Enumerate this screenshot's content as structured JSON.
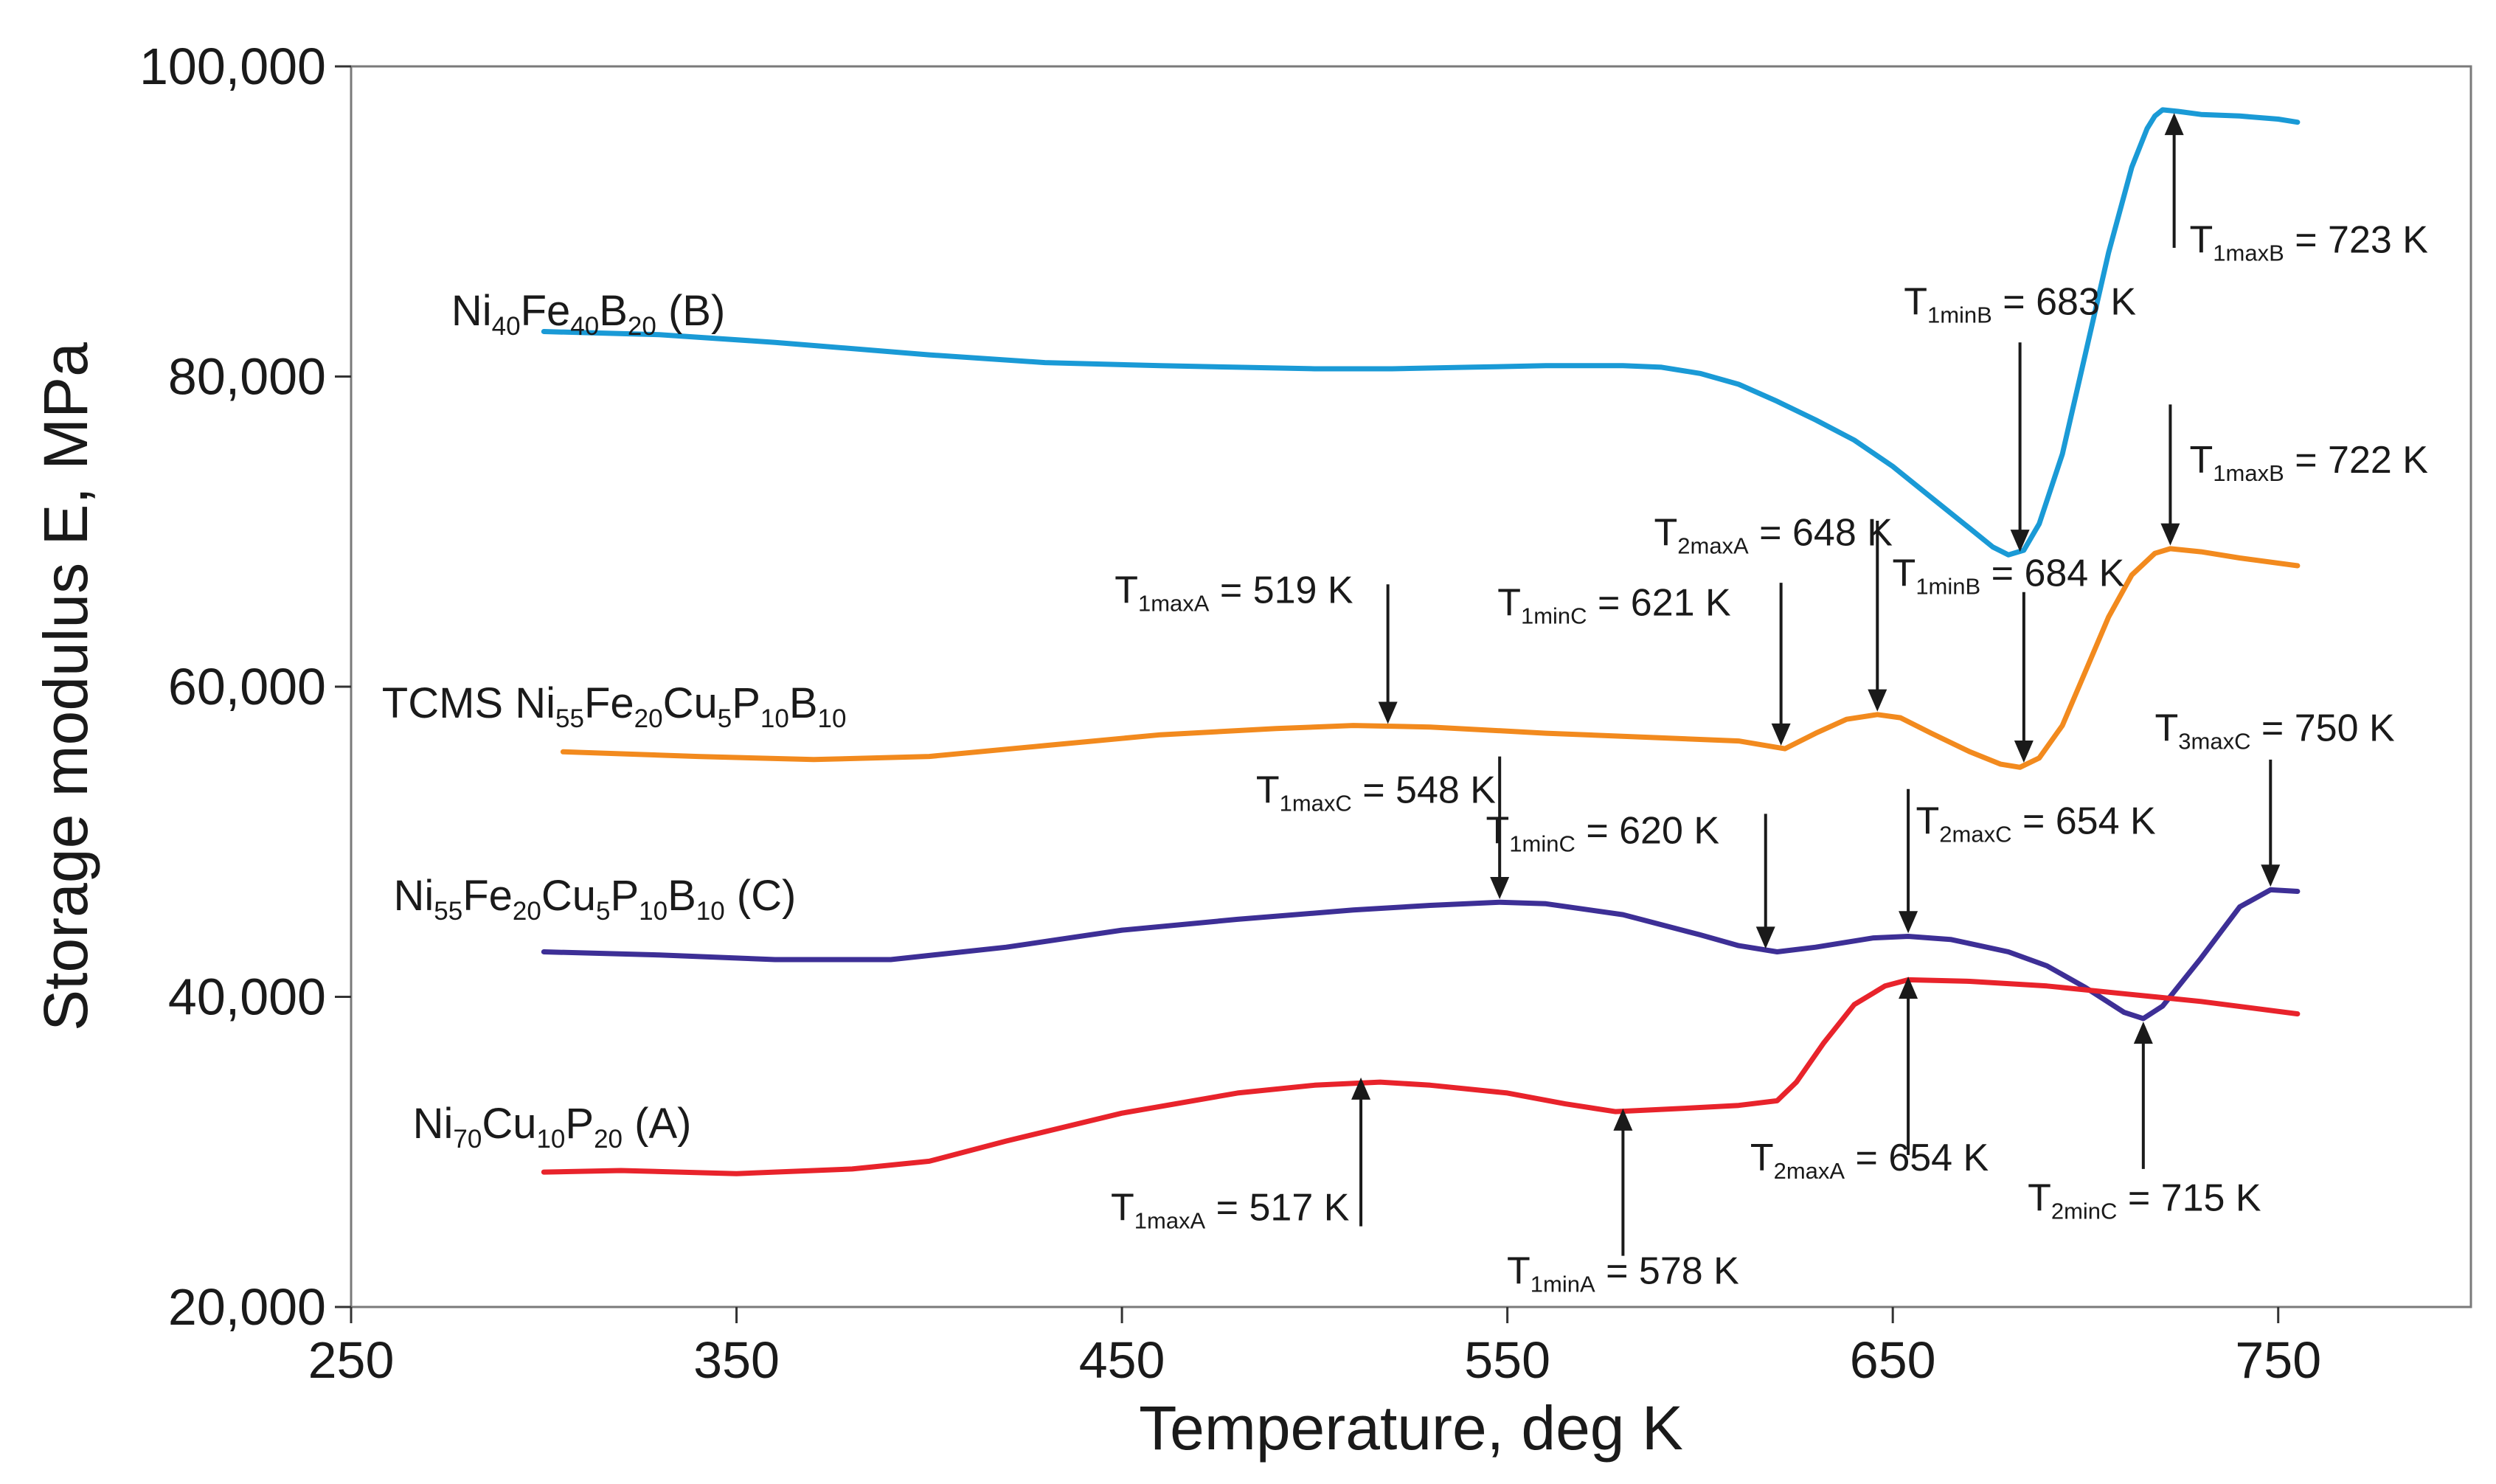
{
  "chart_data": {
    "type": "line",
    "title": "",
    "xlabel": "Temperature, deg K",
    "ylabel": "Storage modulus E, MPa",
    "xlim": [
      250,
      800
    ],
    "ylim": [
      20000,
      100000
    ],
    "x_ticks": [
      250,
      350,
      450,
      550,
      650,
      750
    ],
    "x_tick_labels": [
      "250",
      "350",
      "450",
      "550",
      "650",
      "750"
    ],
    "y_ticks": [
      20000,
      40000,
      60000,
      80000,
      100000
    ],
    "y_tick_labels": [
      "20,000",
      "40,000",
      "60,000",
      "80,000",
      "100,000"
    ],
    "grid": false,
    "series": [
      {
        "name": "Ni40Fe40B20 (B)",
        "label": [
          [
            "Ni",
            "n"
          ],
          [
            "40",
            "s"
          ],
          [
            "Fe",
            "n"
          ],
          [
            "40",
            "s"
          ],
          [
            "B",
            "n"
          ],
          [
            "20",
            "s"
          ],
          [
            " (B)",
            "n"
          ]
        ],
        "color": "#1a9ad6",
        "x": [
          300,
          330,
          360,
          400,
          430,
          460,
          480,
          500,
          520,
          540,
          560,
          580,
          590,
          600,
          610,
          620,
          630,
          640,
          650,
          660,
          670,
          676,
          680,
          684,
          688,
          694,
          700,
          706,
          712,
          716,
          718,
          720,
          724,
          730,
          740,
          750,
          755
        ],
        "y": [
          82900,
          82700,
          82200,
          81400,
          80900,
          80700,
          80600,
          80500,
          80500,
          80600,
          80700,
          80700,
          80600,
          80200,
          79500,
          78400,
          77200,
          75900,
          74200,
          72200,
          70200,
          69000,
          68500,
          68800,
          70500,
          75000,
          81500,
          88000,
          93500,
          96000,
          96800,
          97200,
          97100,
          96900,
          96800,
          96600,
          96400
        ]
      },
      {
        "name": "TCMS Ni55Fe20Cu5P10B10",
        "label": [
          [
            "TCMS Ni",
            "n"
          ],
          [
            "55",
            "s"
          ],
          [
            "Fe",
            "n"
          ],
          [
            "20",
            "s"
          ],
          [
            "Cu",
            "n"
          ],
          [
            "5",
            "s"
          ],
          [
            "P",
            "n"
          ],
          [
            "10",
            "s"
          ],
          [
            "B",
            "n"
          ],
          [
            "10",
            "s"
          ]
        ],
        "color": "#f28a1e",
        "x": [
          305,
          340,
          370,
          400,
          430,
          460,
          490,
          510,
          530,
          560,
          590,
          610,
          622,
          630,
          638,
          646,
          652,
          660,
          670,
          678,
          683,
          688,
          694,
          700,
          706,
          712,
          718,
          722,
          730,
          740,
          755
        ],
        "y": [
          55800,
          55500,
          55300,
          55500,
          56200,
          56900,
          57300,
          57500,
          57400,
          57000,
          56700,
          56500,
          56000,
          57000,
          57900,
          58200,
          58000,
          57000,
          55800,
          55000,
          54800,
          55400,
          57500,
          61000,
          64500,
          67200,
          68600,
          68900,
          68700,
          68300,
          67800
        ]
      },
      {
        "name": "Ni55Fe20Cu5P10B10 (C)",
        "label": [
          [
            "Ni",
            "n"
          ],
          [
            "55",
            "s"
          ],
          [
            "Fe",
            "n"
          ],
          [
            "20",
            "s"
          ],
          [
            "Cu",
            "n"
          ],
          [
            "5",
            "s"
          ],
          [
            "P",
            "n"
          ],
          [
            "10",
            "s"
          ],
          [
            "B",
            "n"
          ],
          [
            "10",
            "s"
          ],
          [
            " (C)",
            "n"
          ]
        ],
        "color": "#3d2f96",
        "x": [
          300,
          330,
          360,
          390,
          420,
          450,
          480,
          510,
          530,
          548,
          560,
          580,
          600,
          610,
          620,
          630,
          645,
          654,
          665,
          680,
          690,
          700,
          710,
          715,
          720,
          730,
          740,
          748,
          755
        ],
        "y": [
          42900,
          42700,
          42400,
          42400,
          43200,
          44300,
          45000,
          45600,
          45900,
          46100,
          46000,
          45300,
          44000,
          43300,
          42900,
          43200,
          43800,
          43900,
          43700,
          42900,
          42000,
          40600,
          39000,
          38600,
          39400,
          42500,
          45800,
          46900,
          46800
        ]
      },
      {
        "name": "Ni70Cu10P20 (A)",
        "label": [
          [
            "Ni",
            "n"
          ],
          [
            "70",
            "s"
          ],
          [
            "Cu",
            "n"
          ],
          [
            "10",
            "s"
          ],
          [
            "P",
            "n"
          ],
          [
            "20",
            "s"
          ],
          [
            " (A)",
            "n"
          ]
        ],
        "color": "#e8232b",
        "x": [
          300,
          320,
          350,
          380,
          400,
          420,
          450,
          480,
          500,
          517,
          530,
          550,
          565,
          578,
          595,
          610,
          620,
          625,
          632,
          640,
          648,
          654,
          670,
          690,
          710,
          730,
          755
        ],
        "y": [
          28700,
          28800,
          28600,
          28900,
          29400,
          30700,
          32500,
          33800,
          34300,
          34500,
          34300,
          33800,
          33100,
          32600,
          32800,
          33000,
          33300,
          34500,
          37000,
          39500,
          40700,
          41100,
          41000,
          40700,
          40200,
          39700,
          38900
        ]
      }
    ],
    "series_labels_pos": [
      [
        276,
        83300
      ],
      [
        258,
        58000
      ],
      [
        261,
        45600
      ],
      [
        266,
        30900
      ]
    ],
    "annotations": [
      {
        "text": [
          [
            "T",
            "n"
          ],
          [
            "1maxB",
            "s"
          ],
          [
            " = 723 K",
            "n"
          ]
        ],
        "x": 723,
        "y": 97000,
        "dir": "up",
        "len": 8700,
        "text_x": 727,
        "text_y": 88000,
        "anchor": "start"
      },
      {
        "text": [
          [
            "T",
            "n"
          ],
          [
            "1minB",
            "s"
          ],
          [
            " = 683 K",
            "n"
          ]
        ],
        "x": 683,
        "y": 68700,
        "dir": "down",
        "len": 13500,
        "text_x": 683,
        "text_y": 84000,
        "anchor": "middle"
      },
      {
        "text": [
          [
            "T",
            "n"
          ],
          [
            "1maxB",
            "s"
          ],
          [
            " = 722 K",
            "n"
          ]
        ],
        "x": 722,
        "y": 69100,
        "dir": "down",
        "len": 9100,
        "text_x": 727,
        "text_y": 73800,
        "anchor": "start"
      },
      {
        "text": [
          [
            "T",
            "n"
          ],
          [
            "2maxA",
            "s"
          ],
          [
            " = 648 K",
            "n"
          ]
        ],
        "x": 646,
        "y": 58400,
        "dir": "down",
        "len": 12300,
        "text_x": 619,
        "text_y": 69100,
        "anchor": "middle"
      },
      {
        "text": [
          [
            "T",
            "n"
          ],
          [
            "1minB",
            "s"
          ],
          [
            " = 684 K",
            "n"
          ]
        ],
        "x": 684,
        "y": 55100,
        "dir": "down",
        "len": 11000,
        "text_x": 680,
        "text_y": 66500,
        "anchor": "middle"
      },
      {
        "text": [
          [
            "T",
            "n"
          ],
          [
            "1minC",
            "s"
          ],
          [
            " = 621 K",
            "n"
          ]
        ],
        "x": 621,
        "y": 56200,
        "dir": "down",
        "len": 10500,
        "text_x": 608,
        "text_y": 64600,
        "anchor": "end"
      },
      {
        "text": [
          [
            "T",
            "n"
          ],
          [
            "1maxA",
            "s"
          ],
          [
            " = 519 K",
            "n"
          ]
        ],
        "x": 519,
        "y": 57600,
        "dir": "down",
        "len": 9000,
        "text_x": 510,
        "text_y": 65400,
        "anchor": "end"
      },
      {
        "text": [
          [
            "T",
            "n"
          ],
          [
            "1maxC",
            "s"
          ],
          [
            " = 548 K",
            "n"
          ]
        ],
        "x": 548,
        "y": 46300,
        "dir": "down",
        "len": 9200,
        "text_x": 547,
        "text_y": 52500,
        "anchor": "end"
      },
      {
        "text": [
          [
            "T",
            "n"
          ],
          [
            "1minC",
            "s"
          ],
          [
            " = 620 K",
            "n"
          ]
        ],
        "x": 617,
        "y": 43100,
        "dir": "down",
        "len": 8700,
        "text_x": 605,
        "text_y": 49900,
        "anchor": "end"
      },
      {
        "text": [
          [
            "T",
            "n"
          ],
          [
            "2maxC",
            "s"
          ],
          [
            " = 654 K",
            "n"
          ]
        ],
        "x": 654,
        "y": 44100,
        "dir": "down",
        "len": 9300,
        "text_x": 656,
        "text_y": 50500,
        "anchor": "start"
      },
      {
        "text": [
          [
            "T",
            "n"
          ],
          [
            "3maxC",
            "s"
          ],
          [
            " = 750 K",
            "n"
          ]
        ],
        "x": 748,
        "y": 47100,
        "dir": "down",
        "len": 8200,
        "text_x": 718,
        "text_y": 56500,
        "anchor": "start"
      },
      {
        "text": [
          [
            "T",
            "n"
          ],
          [
            "1maxA",
            "s"
          ],
          [
            " = 517 K",
            "n"
          ]
        ],
        "x": 512,
        "y": 34800,
        "dir": "up",
        "len": 9600,
        "text_x": 509,
        "text_y": 25600,
        "anchor": "end"
      },
      {
        "text": [
          [
            "T",
            "n"
          ],
          [
            "1minA",
            "s"
          ],
          [
            " = 578 K",
            "n"
          ]
        ],
        "x": 580,
        "y": 32800,
        "dir": "up",
        "len": 9500,
        "text_x": 580,
        "text_y": 21500,
        "anchor": "middle"
      },
      {
        "text": [
          [
            "T",
            "n"
          ],
          [
            "2maxA",
            "s"
          ],
          [
            " = 654 K",
            "n"
          ]
        ],
        "x": 654,
        "y": 41300,
        "dir": "up",
        "len": 11500,
        "text_x": 613,
        "text_y": 28800,
        "anchor": "start"
      },
      {
        "text": [
          [
            "T",
            "n"
          ],
          [
            "2minC",
            "s"
          ],
          [
            " = 715 K",
            "n"
          ]
        ],
        "x": 715,
        "y": 38400,
        "dir": "up",
        "len": 9500,
        "text_x": 685,
        "text_y": 26200,
        "anchor": "start"
      }
    ]
  }
}
